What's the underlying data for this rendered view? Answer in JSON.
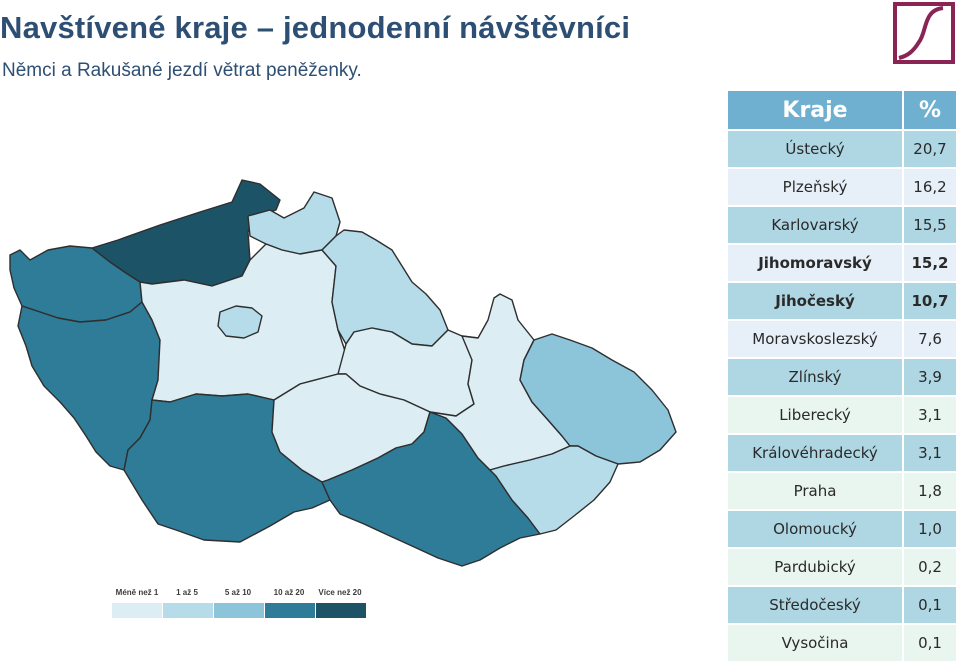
{
  "header": {
    "title": "Navštívené kraje – jednodenní návštěvníci",
    "subtitle": "Němci a Rakušané jezdí větrat peněženky."
  },
  "logo": {
    "icon": "s-logo-icon",
    "color": "#8a2454"
  },
  "legend": {
    "items": [
      {
        "label": "Méně než 1",
        "color": "#dcedf4"
      },
      {
        "label": "1 až 5",
        "color": "#b6dcea"
      },
      {
        "label": "5 až 10",
        "color": "#8cc4da"
      },
      {
        "label": "10 až 20",
        "color": "#2f7c98"
      },
      {
        "label": "Více než 20",
        "color": "#1d5366"
      }
    ]
  },
  "chart_data": {
    "type": "table",
    "columns": [
      "Kraje",
      "%"
    ],
    "rows": [
      {
        "region": "Ústecký",
        "value": "20,7",
        "bold": false,
        "bg": "#aed6e3"
      },
      {
        "region": "Plzeňský",
        "value": "16,2",
        "bold": false,
        "bg": "#e7eff8"
      },
      {
        "region": "Karlovarský",
        "value": "15,5",
        "bold": false,
        "bg": "#aed6e3"
      },
      {
        "region": "Jihomoravský",
        "value": "15,2",
        "bold": true,
        "bg": "#e7eff8"
      },
      {
        "region": "Jihočeský",
        "value": "10,7",
        "bold": true,
        "bg": "#aed6e3"
      },
      {
        "region": "Moravskoslezský",
        "value": "7,6",
        "bold": false,
        "bg": "#e7eff8"
      },
      {
        "region": "Zlínský",
        "value": "3,9",
        "bold": false,
        "bg": "#aed6e3"
      },
      {
        "region": "Liberecký",
        "value": "3,1",
        "bold": false,
        "bg": "#e9f5ef"
      },
      {
        "region": "Královéhradecký",
        "value": "3,1",
        "bold": false,
        "bg": "#aed6e3"
      },
      {
        "region": "Praha",
        "value": "1,8",
        "bold": false,
        "bg": "#e9f5ef"
      },
      {
        "region": "Olomoucký",
        "value": "1,0",
        "bold": false,
        "bg": "#aed6e3"
      },
      {
        "region": "Pardubický",
        "value": "0,2",
        "bold": false,
        "bg": "#e9f5ef"
      },
      {
        "region": "Středočeský",
        "value": "0,1",
        "bold": false,
        "bg": "#aed6e3"
      },
      {
        "region": "Vysočina",
        "value": "0,1",
        "bold": false,
        "bg": "#e9f5ef"
      }
    ],
    "map_regions": [
      {
        "region": "Karlovarský",
        "color": "#2f7c98"
      },
      {
        "region": "Ústecký",
        "color": "#1d5366"
      },
      {
        "region": "Liberecký",
        "color": "#b6dcea"
      },
      {
        "region": "Plzeňský",
        "color": "#2f7c98"
      },
      {
        "region": "Středočeský",
        "color": "#dcedf4"
      },
      {
        "region": "Praha",
        "color": "#b6dcea"
      },
      {
        "region": "Královéhradecký",
        "color": "#b6dcea"
      },
      {
        "region": "Pardubický",
        "color": "#dcedf4"
      },
      {
        "region": "Jihočeský",
        "color": "#2f7c98"
      },
      {
        "region": "Vysočina",
        "color": "#dcedf4"
      },
      {
        "region": "Jihomoravský",
        "color": "#2f7c98"
      },
      {
        "region": "Olomoucký",
        "color": "#dcedf4"
      },
      {
        "region": "Moravskoslezský",
        "color": "#8cc4da"
      },
      {
        "region": "Zlínský",
        "color": "#b6dcea"
      }
    ]
  }
}
